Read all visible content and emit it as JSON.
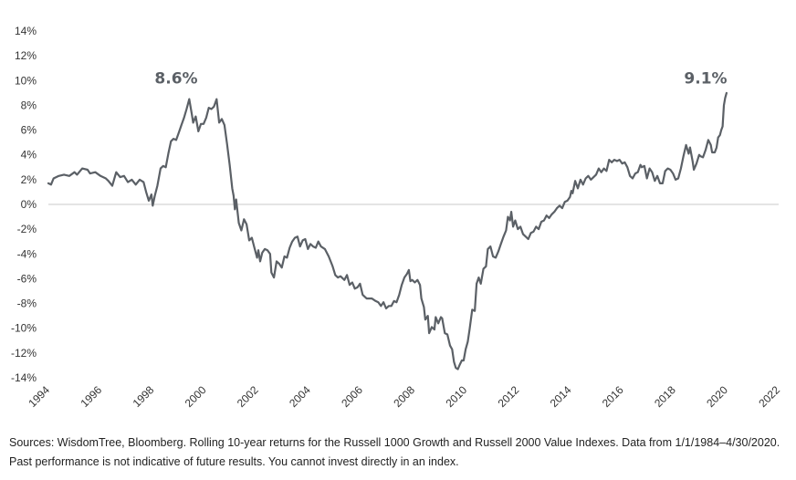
{
  "chart_data": {
    "type": "line",
    "title": "",
    "xlabel": "",
    "ylabel": "",
    "xlim": [
      1994,
      2022
    ],
    "ylim": [
      -14,
      14
    ],
    "x_ticks": [
      "1994",
      "1996",
      "1998",
      "2000",
      "2002",
      "2004",
      "2006",
      "2008",
      "2010",
      "2012",
      "2014",
      "2016",
      "2018",
      "2020",
      "2022"
    ],
    "y_ticks": [
      "14%",
      "12%",
      "10%",
      "8%",
      "6%",
      "4%",
      "2%",
      "0%",
      "-2%",
      "-4%",
      "-6%",
      "-8%",
      "-10%",
      "-12%",
      "-14%"
    ],
    "grid": false,
    "legend": "none",
    "line_color": "#5b6066",
    "annotations": [
      {
        "text": "8.6%",
        "x": 1998.9,
        "y": 10.2
      },
      {
        "text": "9.1%",
        "x": 2019.2,
        "y": 10.2
      }
    ],
    "series": [
      {
        "values": [
          [
            1994.0,
            1.7
          ],
          [
            1994.1,
            1.6
          ],
          [
            1994.2,
            2.1
          ],
          [
            1994.4,
            2.3
          ],
          [
            1994.6,
            2.4
          ],
          [
            1994.8,
            2.3
          ],
          [
            1995.0,
            2.6
          ],
          [
            1995.1,
            2.4
          ],
          [
            1995.3,
            2.9
          ],
          [
            1995.5,
            2.8
          ],
          [
            1995.6,
            2.5
          ],
          [
            1995.8,
            2.6
          ],
          [
            1996.0,
            2.3
          ],
          [
            1996.2,
            2.1
          ],
          [
            1996.3,
            1.9
          ],
          [
            1996.45,
            1.5
          ],
          [
            1996.6,
            2.6
          ],
          [
            1996.75,
            2.2
          ],
          [
            1996.9,
            2.3
          ],
          [
            1997.05,
            1.8
          ],
          [
            1997.2,
            2.0
          ],
          [
            1997.35,
            1.6
          ],
          [
            1997.5,
            2.0
          ],
          [
            1997.65,
            1.8
          ],
          [
            1997.75,
            1.0
          ],
          [
            1997.85,
            0.3
          ],
          [
            1997.95,
            0.8
          ],
          [
            1998.0,
            -0.1
          ],
          [
            1998.08,
            0.7
          ],
          [
            1998.18,
            1.5
          ],
          [
            1998.3,
            2.9
          ],
          [
            1998.4,
            3.1
          ],
          [
            1998.5,
            3.0
          ],
          [
            1998.6,
            4.1
          ],
          [
            1998.7,
            5.1
          ],
          [
            1998.8,
            5.3
          ],
          [
            1998.9,
            5.2
          ],
          [
            1999.0,
            5.8
          ],
          [
            1999.1,
            6.4
          ],
          [
            1999.2,
            7.0
          ],
          [
            1999.3,
            7.7
          ],
          [
            1999.4,
            8.5
          ],
          [
            1999.5,
            7.3
          ],
          [
            1999.55,
            6.6
          ],
          [
            1999.65,
            7.1
          ],
          [
            1999.75,
            5.9
          ],
          [
            1999.85,
            6.5
          ],
          [
            1999.95,
            6.5
          ],
          [
            2000.05,
            7.0
          ],
          [
            2000.15,
            7.8
          ],
          [
            2000.25,
            7.7
          ],
          [
            2000.35,
            7.9
          ],
          [
            2000.45,
            8.5
          ],
          [
            2000.55,
            6.6
          ],
          [
            2000.65,
            6.9
          ],
          [
            2000.75,
            6.4
          ],
          [
            2000.85,
            4.9
          ],
          [
            2000.95,
            3.2
          ],
          [
            2001.05,
            1.3
          ],
          [
            2001.1,
            0.7
          ],
          [
            2001.15,
            -0.4
          ],
          [
            2001.2,
            0.4
          ],
          [
            2001.3,
            -1.5
          ],
          [
            2001.4,
            -2.1
          ],
          [
            2001.5,
            -1.2
          ],
          [
            2001.6,
            -1.6
          ],
          [
            2001.7,
            -2.9
          ],
          [
            2001.8,
            -2.7
          ],
          [
            2001.9,
            -3.5
          ],
          [
            2002.0,
            -4.3
          ],
          [
            2002.05,
            -3.7
          ],
          [
            2002.12,
            -4.6
          ],
          [
            2002.2,
            -3.9
          ],
          [
            2002.3,
            -3.6
          ],
          [
            2002.4,
            -3.7
          ],
          [
            2002.5,
            -4.0
          ],
          [
            2002.55,
            -5.5
          ],
          [
            2002.65,
            -5.9
          ],
          [
            2002.75,
            -4.6
          ],
          [
            2002.85,
            -4.8
          ],
          [
            2002.95,
            -5.1
          ],
          [
            2003.05,
            -4.2
          ],
          [
            2003.15,
            -4.3
          ],
          [
            2003.25,
            -3.5
          ],
          [
            2003.35,
            -3.0
          ],
          [
            2003.45,
            -2.7
          ],
          [
            2003.55,
            -2.6
          ],
          [
            2003.65,
            -3.4
          ],
          [
            2003.75,
            -2.9
          ],
          [
            2003.85,
            -2.8
          ],
          [
            2003.95,
            -3.6
          ],
          [
            2004.05,
            -3.2
          ],
          [
            2004.15,
            -3.4
          ],
          [
            2004.25,
            -3.5
          ],
          [
            2004.35,
            -3.0
          ],
          [
            2004.45,
            -3.4
          ],
          [
            2004.6,
            -3.6
          ],
          [
            2004.75,
            -4.2
          ],
          [
            2004.9,
            -5.0
          ],
          [
            2005.0,
            -5.7
          ],
          [
            2005.1,
            -5.9
          ],
          [
            2005.2,
            -5.8
          ],
          [
            2005.35,
            -6.1
          ],
          [
            2005.45,
            -5.7
          ],
          [
            2005.55,
            -6.5
          ],
          [
            2005.65,
            -6.3
          ],
          [
            2005.75,
            -6.8
          ],
          [
            2005.85,
            -6.7
          ],
          [
            2005.95,
            -6.4
          ],
          [
            2006.05,
            -7.3
          ],
          [
            2006.2,
            -7.6
          ],
          [
            2006.4,
            -7.6
          ],
          [
            2006.55,
            -7.8
          ],
          [
            2006.65,
            -7.9
          ],
          [
            2006.75,
            -8.2
          ],
          [
            2006.85,
            -7.9
          ],
          [
            2006.95,
            -8.4
          ],
          [
            2007.05,
            -8.2
          ],
          [
            2007.15,
            -8.2
          ],
          [
            2007.25,
            -7.8
          ],
          [
            2007.35,
            -7.9
          ],
          [
            2007.45,
            -7.3
          ],
          [
            2007.55,
            -6.5
          ],
          [
            2007.65,
            -5.9
          ],
          [
            2007.75,
            -5.6
          ],
          [
            2007.82,
            -5.3
          ],
          [
            2007.88,
            -6.2
          ],
          [
            2007.95,
            -6.1
          ],
          [
            2008.05,
            -6.3
          ],
          [
            2008.15,
            -6.1
          ],
          [
            2008.25,
            -6.5
          ],
          [
            2008.3,
            -7.6
          ],
          [
            2008.4,
            -8.3
          ],
          [
            2008.45,
            -9.3
          ],
          [
            2008.55,
            -9.0
          ],
          [
            2008.6,
            -10.4
          ],
          [
            2008.7,
            -9.9
          ],
          [
            2008.8,
            -10.1
          ],
          [
            2008.85,
            -9.1
          ],
          [
            2008.95,
            -9.6
          ],
          [
            2009.05,
            -9.1
          ],
          [
            2009.1,
            -9.2
          ],
          [
            2009.2,
            -10.4
          ],
          [
            2009.3,
            -10.5
          ],
          [
            2009.4,
            -11.4
          ],
          [
            2009.48,
            -11.7
          ],
          [
            2009.55,
            -12.7
          ],
          [
            2009.62,
            -13.2
          ],
          [
            2009.7,
            -13.3
          ],
          [
            2009.78,
            -12.9
          ],
          [
            2009.85,
            -12.6
          ],
          [
            2009.92,
            -12.6
          ],
          [
            2010.0,
            -11.7
          ],
          [
            2010.08,
            -11.1
          ],
          [
            2010.15,
            -10.1
          ],
          [
            2010.25,
            -8.5
          ],
          [
            2010.35,
            -8.6
          ],
          [
            2010.42,
            -6.4
          ],
          [
            2010.5,
            -5.9
          ],
          [
            2010.58,
            -6.4
          ],
          [
            2010.68,
            -5.2
          ],
          [
            2010.78,
            -5.0
          ],
          [
            2010.85,
            -3.6
          ],
          [
            2010.95,
            -3.4
          ],
          [
            2011.05,
            -4.2
          ],
          [
            2011.15,
            -4.3
          ],
          [
            2011.25,
            -3.8
          ],
          [
            2011.35,
            -3.2
          ],
          [
            2011.45,
            -2.6
          ],
          [
            2011.55,
            -2.1
          ],
          [
            2011.62,
            -1.0
          ],
          [
            2011.7,
            -1.3
          ],
          [
            2011.75,
            -0.6
          ],
          [
            2011.82,
            -1.8
          ],
          [
            2011.9,
            -1.3
          ],
          [
            2012.0,
            -2.0
          ],
          [
            2012.1,
            -1.8
          ],
          [
            2012.2,
            -2.4
          ],
          [
            2012.3,
            -2.6
          ],
          [
            2012.4,
            -2.8
          ],
          [
            2012.5,
            -2.3
          ],
          [
            2012.6,
            -2.2
          ],
          [
            2012.7,
            -1.8
          ],
          [
            2012.8,
            -2.0
          ],
          [
            2012.9,
            -1.4
          ],
          [
            2013.0,
            -1.3
          ],
          [
            2013.1,
            -0.9
          ],
          [
            2013.2,
            -1.1
          ],
          [
            2013.3,
            -0.8
          ],
          [
            2013.4,
            -0.6
          ],
          [
            2013.5,
            -0.3
          ],
          [
            2013.6,
            -0.1
          ],
          [
            2013.7,
            -0.3
          ],
          [
            2013.8,
            0.2
          ],
          [
            2013.9,
            0.3
          ],
          [
            2014.0,
            0.6
          ],
          [
            2014.05,
            1.1
          ],
          [
            2014.1,
            0.9
          ],
          [
            2014.2,
            1.9
          ],
          [
            2014.3,
            1.3
          ],
          [
            2014.4,
            2.0
          ],
          [
            2014.5,
            1.6
          ],
          [
            2014.6,
            2.1
          ],
          [
            2014.7,
            2.3
          ],
          [
            2014.8,
            2.0
          ],
          [
            2015.0,
            2.4
          ],
          [
            2015.1,
            2.9
          ],
          [
            2015.2,
            2.6
          ],
          [
            2015.3,
            2.9
          ],
          [
            2015.4,
            2.7
          ],
          [
            2015.5,
            3.6
          ],
          [
            2015.6,
            3.4
          ],
          [
            2015.7,
            3.6
          ],
          [
            2015.8,
            3.5
          ],
          [
            2015.9,
            3.6
          ],
          [
            2016.0,
            3.3
          ],
          [
            2016.1,
            3.4
          ],
          [
            2016.2,
            3.0
          ],
          [
            2016.3,
            2.3
          ],
          [
            2016.4,
            2.1
          ],
          [
            2016.5,
            2.5
          ],
          [
            2016.6,
            2.6
          ],
          [
            2016.7,
            3.2
          ],
          [
            2016.75,
            3.0
          ],
          [
            2016.85,
            3.1
          ],
          [
            2016.95,
            2.1
          ],
          [
            2017.05,
            2.9
          ],
          [
            2017.15,
            2.6
          ],
          [
            2017.25,
            1.9
          ],
          [
            2017.35,
            2.3
          ],
          [
            2017.45,
            1.7
          ],
          [
            2017.55,
            1.7
          ],
          [
            2017.65,
            2.7
          ],
          [
            2017.75,
            2.9
          ],
          [
            2017.85,
            2.8
          ],
          [
            2017.95,
            2.5
          ],
          [
            2018.05,
            2.0
          ],
          [
            2018.15,
            2.1
          ],
          [
            2018.25,
            2.9
          ],
          [
            2018.35,
            3.9
          ],
          [
            2018.45,
            4.8
          ],
          [
            2018.55,
            4.1
          ],
          [
            2018.6,
            4.6
          ],
          [
            2018.7,
            3.5
          ],
          [
            2018.75,
            2.8
          ],
          [
            2018.85,
            3.3
          ],
          [
            2018.95,
            4.0
          ],
          [
            2019.0,
            3.9
          ],
          [
            2019.1,
            3.8
          ],
          [
            2019.2,
            4.4
          ],
          [
            2019.3,
            5.2
          ],
          [
            2019.4,
            4.8
          ],
          [
            2019.45,
            4.2
          ],
          [
            2019.55,
            4.2
          ],
          [
            2019.62,
            4.6
          ],
          [
            2019.68,
            5.4
          ],
          [
            2019.75,
            5.6
          ],
          [
            2019.8,
            6.0
          ],
          [
            2019.85,
            6.3
          ],
          [
            2019.9,
            8.0
          ],
          [
            2019.95,
            8.6
          ],
          [
            2020.0,
            9.0
          ]
        ]
      }
    ]
  },
  "footer": {
    "line1": "Sources: WisdomTree, Bloomberg. Rolling 10-year returns for the Russell 1000 Growth and Russell 2000 Value Indexes. Data from 1/1/1984–4/30/2020.",
    "line2": "Past performance is not indicative of future results. You cannot invest directly in an index."
  }
}
